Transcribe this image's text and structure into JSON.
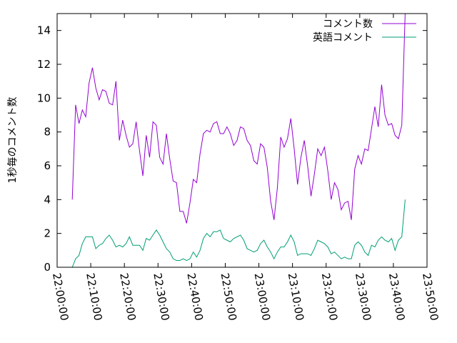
{
  "chart_data": {
    "type": "line",
    "title": "",
    "xlabel": "",
    "ylabel": "1秒毎のコメント数",
    "xlim": [
      "22:00:00",
      "23:50:00"
    ],
    "ylim": [
      0,
      15
    ],
    "x_ticks": [
      "22:00:00",
      "22:10:00",
      "22:20:00",
      "22:30:00",
      "22:40:00",
      "22:50:00",
      "23:00:00",
      "23:10:00",
      "23:20:00",
      "23:30:00",
      "23:40:00",
      "23:50:00"
    ],
    "y_ticks": [
      0,
      2,
      4,
      6,
      8,
      10,
      12,
      14
    ],
    "grid": false,
    "legend": "top-right",
    "series": [
      {
        "name": "コメント数",
        "color": "#9400d3",
        "points": [
          [
            "22:04:30",
            4.0
          ],
          [
            "22:05:30",
            9.6
          ],
          [
            "22:06:30",
            8.5
          ],
          [
            "22:07:30",
            9.3
          ],
          [
            "22:08:30",
            8.9
          ],
          [
            "22:09:30",
            10.9
          ],
          [
            "22:10:30",
            11.8
          ],
          [
            "22:11:30",
            10.6
          ],
          [
            "22:12:30",
            9.9
          ],
          [
            "22:13:30",
            10.5
          ],
          [
            "22:14:30",
            10.4
          ],
          [
            "22:15:30",
            9.7
          ],
          [
            "22:16:30",
            9.6
          ],
          [
            "22:17:30",
            11.0
          ],
          [
            "22:18:30",
            7.5
          ],
          [
            "22:19:30",
            8.7
          ],
          [
            "22:20:30",
            7.8
          ],
          [
            "22:21:30",
            7.1
          ],
          [
            "22:22:30",
            7.3
          ],
          [
            "22:23:30",
            8.6
          ],
          [
            "22:24:30",
            6.9
          ],
          [
            "22:25:30",
            5.4
          ],
          [
            "22:26:30",
            7.8
          ],
          [
            "22:27:30",
            6.5
          ],
          [
            "22:28:30",
            8.6
          ],
          [
            "22:29:30",
            8.4
          ],
          [
            "22:30:30",
            6.5
          ],
          [
            "22:31:30",
            6.1
          ],
          [
            "22:32:30",
            7.9
          ],
          [
            "22:33:30",
            6.4
          ],
          [
            "22:34:30",
            5.1
          ],
          [
            "22:35:30",
            5.0
          ],
          [
            "22:36:30",
            3.3
          ],
          [
            "22:37:30",
            3.3
          ],
          [
            "22:38:30",
            2.6
          ],
          [
            "22:39:30",
            3.8
          ],
          [
            "22:40:30",
            5.2
          ],
          [
            "22:41:30",
            5.0
          ],
          [
            "22:42:30",
            6.7
          ],
          [
            "22:43:30",
            7.9
          ],
          [
            "22:44:30",
            8.1
          ],
          [
            "22:45:30",
            8.0
          ],
          [
            "22:46:30",
            8.5
          ],
          [
            "22:47:30",
            8.6
          ],
          [
            "22:48:30",
            7.9
          ],
          [
            "22:49:30",
            7.9
          ],
          [
            "22:50:30",
            8.3
          ],
          [
            "22:51:30",
            7.9
          ],
          [
            "22:52:30",
            7.2
          ],
          [
            "22:53:30",
            7.5
          ],
          [
            "22:54:30",
            8.3
          ],
          [
            "22:55:30",
            8.2
          ],
          [
            "22:56:30",
            7.5
          ],
          [
            "22:57:30",
            7.2
          ],
          [
            "22:58:30",
            6.3
          ],
          [
            "22:59:30",
            6.1
          ],
          [
            "23:00:30",
            7.3
          ],
          [
            "23:01:30",
            7.1
          ],
          [
            "23:02:30",
            5.9
          ],
          [
            "23:03:30",
            3.9
          ],
          [
            "23:04:30",
            2.8
          ],
          [
            "23:05:30",
            4.7
          ],
          [
            "23:06:30",
            7.7
          ],
          [
            "23:07:30",
            7.1
          ],
          [
            "23:08:30",
            7.6
          ],
          [
            "23:09:30",
            8.8
          ],
          [
            "23:10:30",
            7.0
          ],
          [
            "23:11:30",
            4.9
          ],
          [
            "23:12:30",
            6.5
          ],
          [
            "23:13:30",
            7.5
          ],
          [
            "23:14:30",
            6.0
          ],
          [
            "23:15:30",
            4.2
          ],
          [
            "23:16:30",
            5.5
          ],
          [
            "23:17:30",
            7.0
          ],
          [
            "23:18:30",
            6.6
          ],
          [
            "23:19:30",
            7.1
          ],
          [
            "23:20:30",
            5.7
          ],
          [
            "23:21:30",
            4.0
          ],
          [
            "23:22:30",
            5.0
          ],
          [
            "23:23:30",
            4.6
          ],
          [
            "23:24:30",
            3.4
          ],
          [
            "23:25:30",
            3.8
          ],
          [
            "23:26:30",
            3.9
          ],
          [
            "23:27:30",
            2.8
          ],
          [
            "23:28:30",
            5.8
          ],
          [
            "23:29:30",
            6.6
          ],
          [
            "23:30:30",
            6.1
          ],
          [
            "23:31:30",
            7.0
          ],
          [
            "23:32:30",
            6.9
          ],
          [
            "23:33:30",
            8.2
          ],
          [
            "23:34:30",
            9.5
          ],
          [
            "23:35:30",
            8.3
          ],
          [
            "23:36:30",
            10.8
          ],
          [
            "23:37:30",
            9.0
          ],
          [
            "23:38:30",
            8.4
          ],
          [
            "23:39:30",
            8.5
          ],
          [
            "23:40:30",
            7.8
          ],
          [
            "23:41:30",
            7.6
          ],
          [
            "23:42:30",
            8.4
          ],
          [
            "23:43:30",
            15.0
          ]
        ]
      },
      {
        "name": "英語コメント",
        "color": "#009e73",
        "points": [
          [
            "22:04:30",
            0.0
          ],
          [
            "22:05:30",
            0.5
          ],
          [
            "22:06:30",
            0.7
          ],
          [
            "22:07:30",
            1.4
          ],
          [
            "22:08:30",
            1.8
          ],
          [
            "22:09:30",
            1.8
          ],
          [
            "22:10:30",
            1.8
          ],
          [
            "22:11:30",
            1.1
          ],
          [
            "22:12:30",
            1.3
          ],
          [
            "22:13:30",
            1.4
          ],
          [
            "22:14:30",
            1.7
          ],
          [
            "22:15:30",
            1.9
          ],
          [
            "22:16:30",
            1.6
          ],
          [
            "22:17:30",
            1.2
          ],
          [
            "22:18:30",
            1.3
          ],
          [
            "22:19:30",
            1.2
          ],
          [
            "22:20:30",
            1.4
          ],
          [
            "22:21:30",
            1.8
          ],
          [
            "22:22:30",
            1.3
          ],
          [
            "22:23:30",
            1.3
          ],
          [
            "22:24:30",
            1.3
          ],
          [
            "22:25:30",
            1.0
          ],
          [
            "22:26:30",
            1.7
          ],
          [
            "22:27:30",
            1.6
          ],
          [
            "22:28:30",
            1.9
          ],
          [
            "22:29:30",
            2.2
          ],
          [
            "22:30:30",
            1.9
          ],
          [
            "22:31:30",
            1.5
          ],
          [
            "22:32:30",
            1.1
          ],
          [
            "22:33:30",
            0.9
          ],
          [
            "22:34:30",
            0.5
          ],
          [
            "22:35:30",
            0.4
          ],
          [
            "22:36:30",
            0.4
          ],
          [
            "22:37:30",
            0.5
          ],
          [
            "22:38:30",
            0.4
          ],
          [
            "22:39:30",
            0.5
          ],
          [
            "22:40:30",
            0.9
          ],
          [
            "22:41:30",
            0.6
          ],
          [
            "22:42:30",
            1.0
          ],
          [
            "22:43:30",
            1.7
          ],
          [
            "22:44:30",
            2.0
          ],
          [
            "22:45:30",
            1.8
          ],
          [
            "22:46:30",
            2.1
          ],
          [
            "22:47:30",
            2.1
          ],
          [
            "22:48:30",
            2.2
          ],
          [
            "22:49:30",
            1.7
          ],
          [
            "22:50:30",
            1.6
          ],
          [
            "22:51:30",
            1.5
          ],
          [
            "22:52:30",
            1.7
          ],
          [
            "22:53:30",
            1.8
          ],
          [
            "22:54:30",
            1.9
          ],
          [
            "22:55:30",
            1.6
          ],
          [
            "22:56:30",
            1.1
          ],
          [
            "22:57:30",
            1.0
          ],
          [
            "22:58:30",
            0.9
          ],
          [
            "22:59:30",
            1.0
          ],
          [
            "23:00:30",
            1.4
          ],
          [
            "23:01:30",
            1.6
          ],
          [
            "23:02:30",
            1.2
          ],
          [
            "23:03:30",
            0.9
          ],
          [
            "23:04:30",
            0.5
          ],
          [
            "23:05:30",
            0.9
          ],
          [
            "23:06:30",
            1.2
          ],
          [
            "23:07:30",
            1.2
          ],
          [
            "23:08:30",
            1.5
          ],
          [
            "23:09:30",
            1.9
          ],
          [
            "23:10:30",
            1.5
          ],
          [
            "23:11:30",
            0.7
          ],
          [
            "23:12:30",
            0.8
          ],
          [
            "23:13:30",
            0.8
          ],
          [
            "23:14:30",
            0.8
          ],
          [
            "23:15:30",
            0.7
          ],
          [
            "23:16:30",
            1.1
          ],
          [
            "23:17:30",
            1.6
          ],
          [
            "23:18:30",
            1.5
          ],
          [
            "23:19:30",
            1.4
          ],
          [
            "23:20:30",
            1.2
          ],
          [
            "23:21:30",
            0.8
          ],
          [
            "23:22:30",
            0.9
          ],
          [
            "23:23:30",
            0.7
          ],
          [
            "23:24:30",
            0.5
          ],
          [
            "23:25:30",
            0.6
          ],
          [
            "23:26:30",
            0.5
          ],
          [
            "23:27:30",
            0.5
          ],
          [
            "23:28:30",
            1.3
          ],
          [
            "23:29:30",
            1.5
          ],
          [
            "23:30:30",
            1.3
          ],
          [
            "23:31:30",
            0.9
          ],
          [
            "23:32:30",
            0.7
          ],
          [
            "23:33:30",
            1.3
          ],
          [
            "23:34:30",
            1.2
          ],
          [
            "23:35:30",
            1.6
          ],
          [
            "23:36:30",
            1.8
          ],
          [
            "23:37:30",
            1.6
          ],
          [
            "23:38:30",
            1.5
          ],
          [
            "23:39:30",
            1.7
          ],
          [
            "23:40:30",
            1.0
          ],
          [
            "23:41:30",
            1.6
          ],
          [
            "23:42:30",
            1.8
          ],
          [
            "23:43:30",
            4.0
          ]
        ]
      }
    ]
  }
}
